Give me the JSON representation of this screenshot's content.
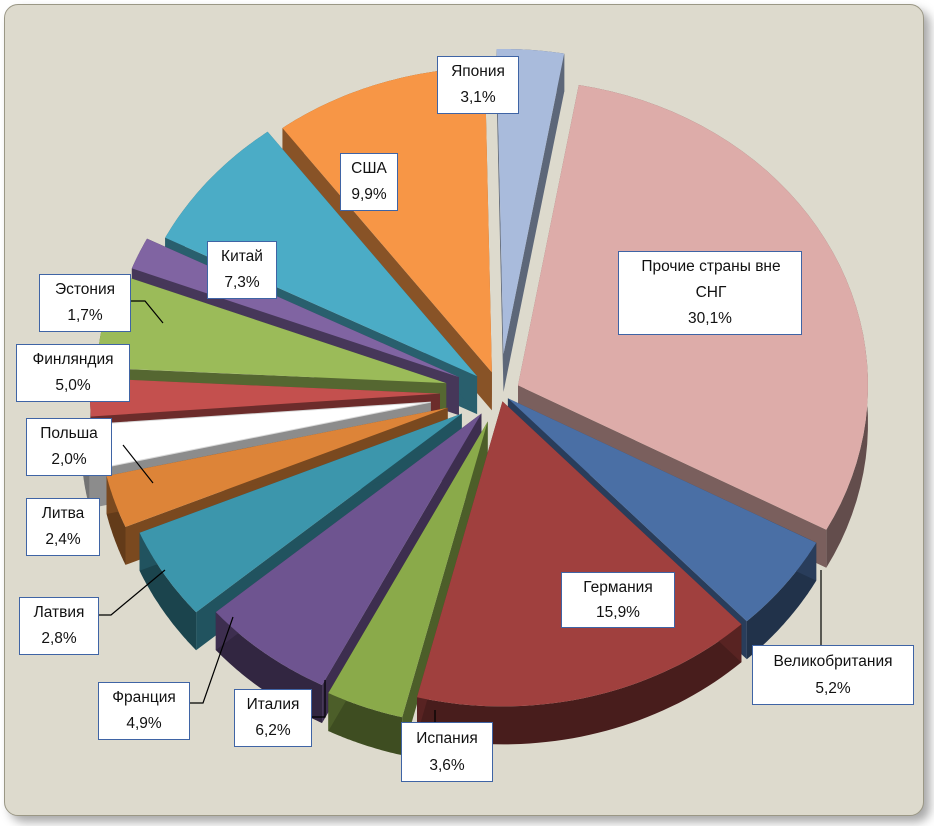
{
  "chart_data": {
    "type": "pie",
    "categories": [
      "Прочие страны вне СНГ",
      "Великобритания",
      "Германия",
      "Испания",
      "Италия",
      "Франция",
      "Латвия",
      "Литва",
      "Польша",
      "Финляндия",
      "Эстония",
      "Китай",
      "США",
      "Япония"
    ],
    "values": [
      30.1,
      5.2,
      15.9,
      3.6,
      6.2,
      4.9,
      2.8,
      2.4,
      2.0,
      5.0,
      1.7,
      7.3,
      9.9,
      3.1
    ],
    "value_labels": [
      "30,1%",
      "5,2%",
      "15,9%",
      "3,6%",
      "6,2%",
      "4,9%",
      "2,8%",
      "2,4%",
      "2,0%",
      "5,0%",
      "1,7%",
      "7,3%",
      "9,9%",
      "3,1%"
    ],
    "colors": [
      "#ddaca9",
      "#4a6fa5",
      "#a0403e",
      "#8aaa4a",
      "#6e5490",
      "#3c96ac",
      "#dd8438",
      "#ffffff",
      "#c4504e",
      "#9bbb59",
      "#8064a2",
      "#4bacc6",
      "#f79646",
      "#a9bbdc"
    ],
    "title": "",
    "legend": "none",
    "style": "exploded-3d"
  }
}
